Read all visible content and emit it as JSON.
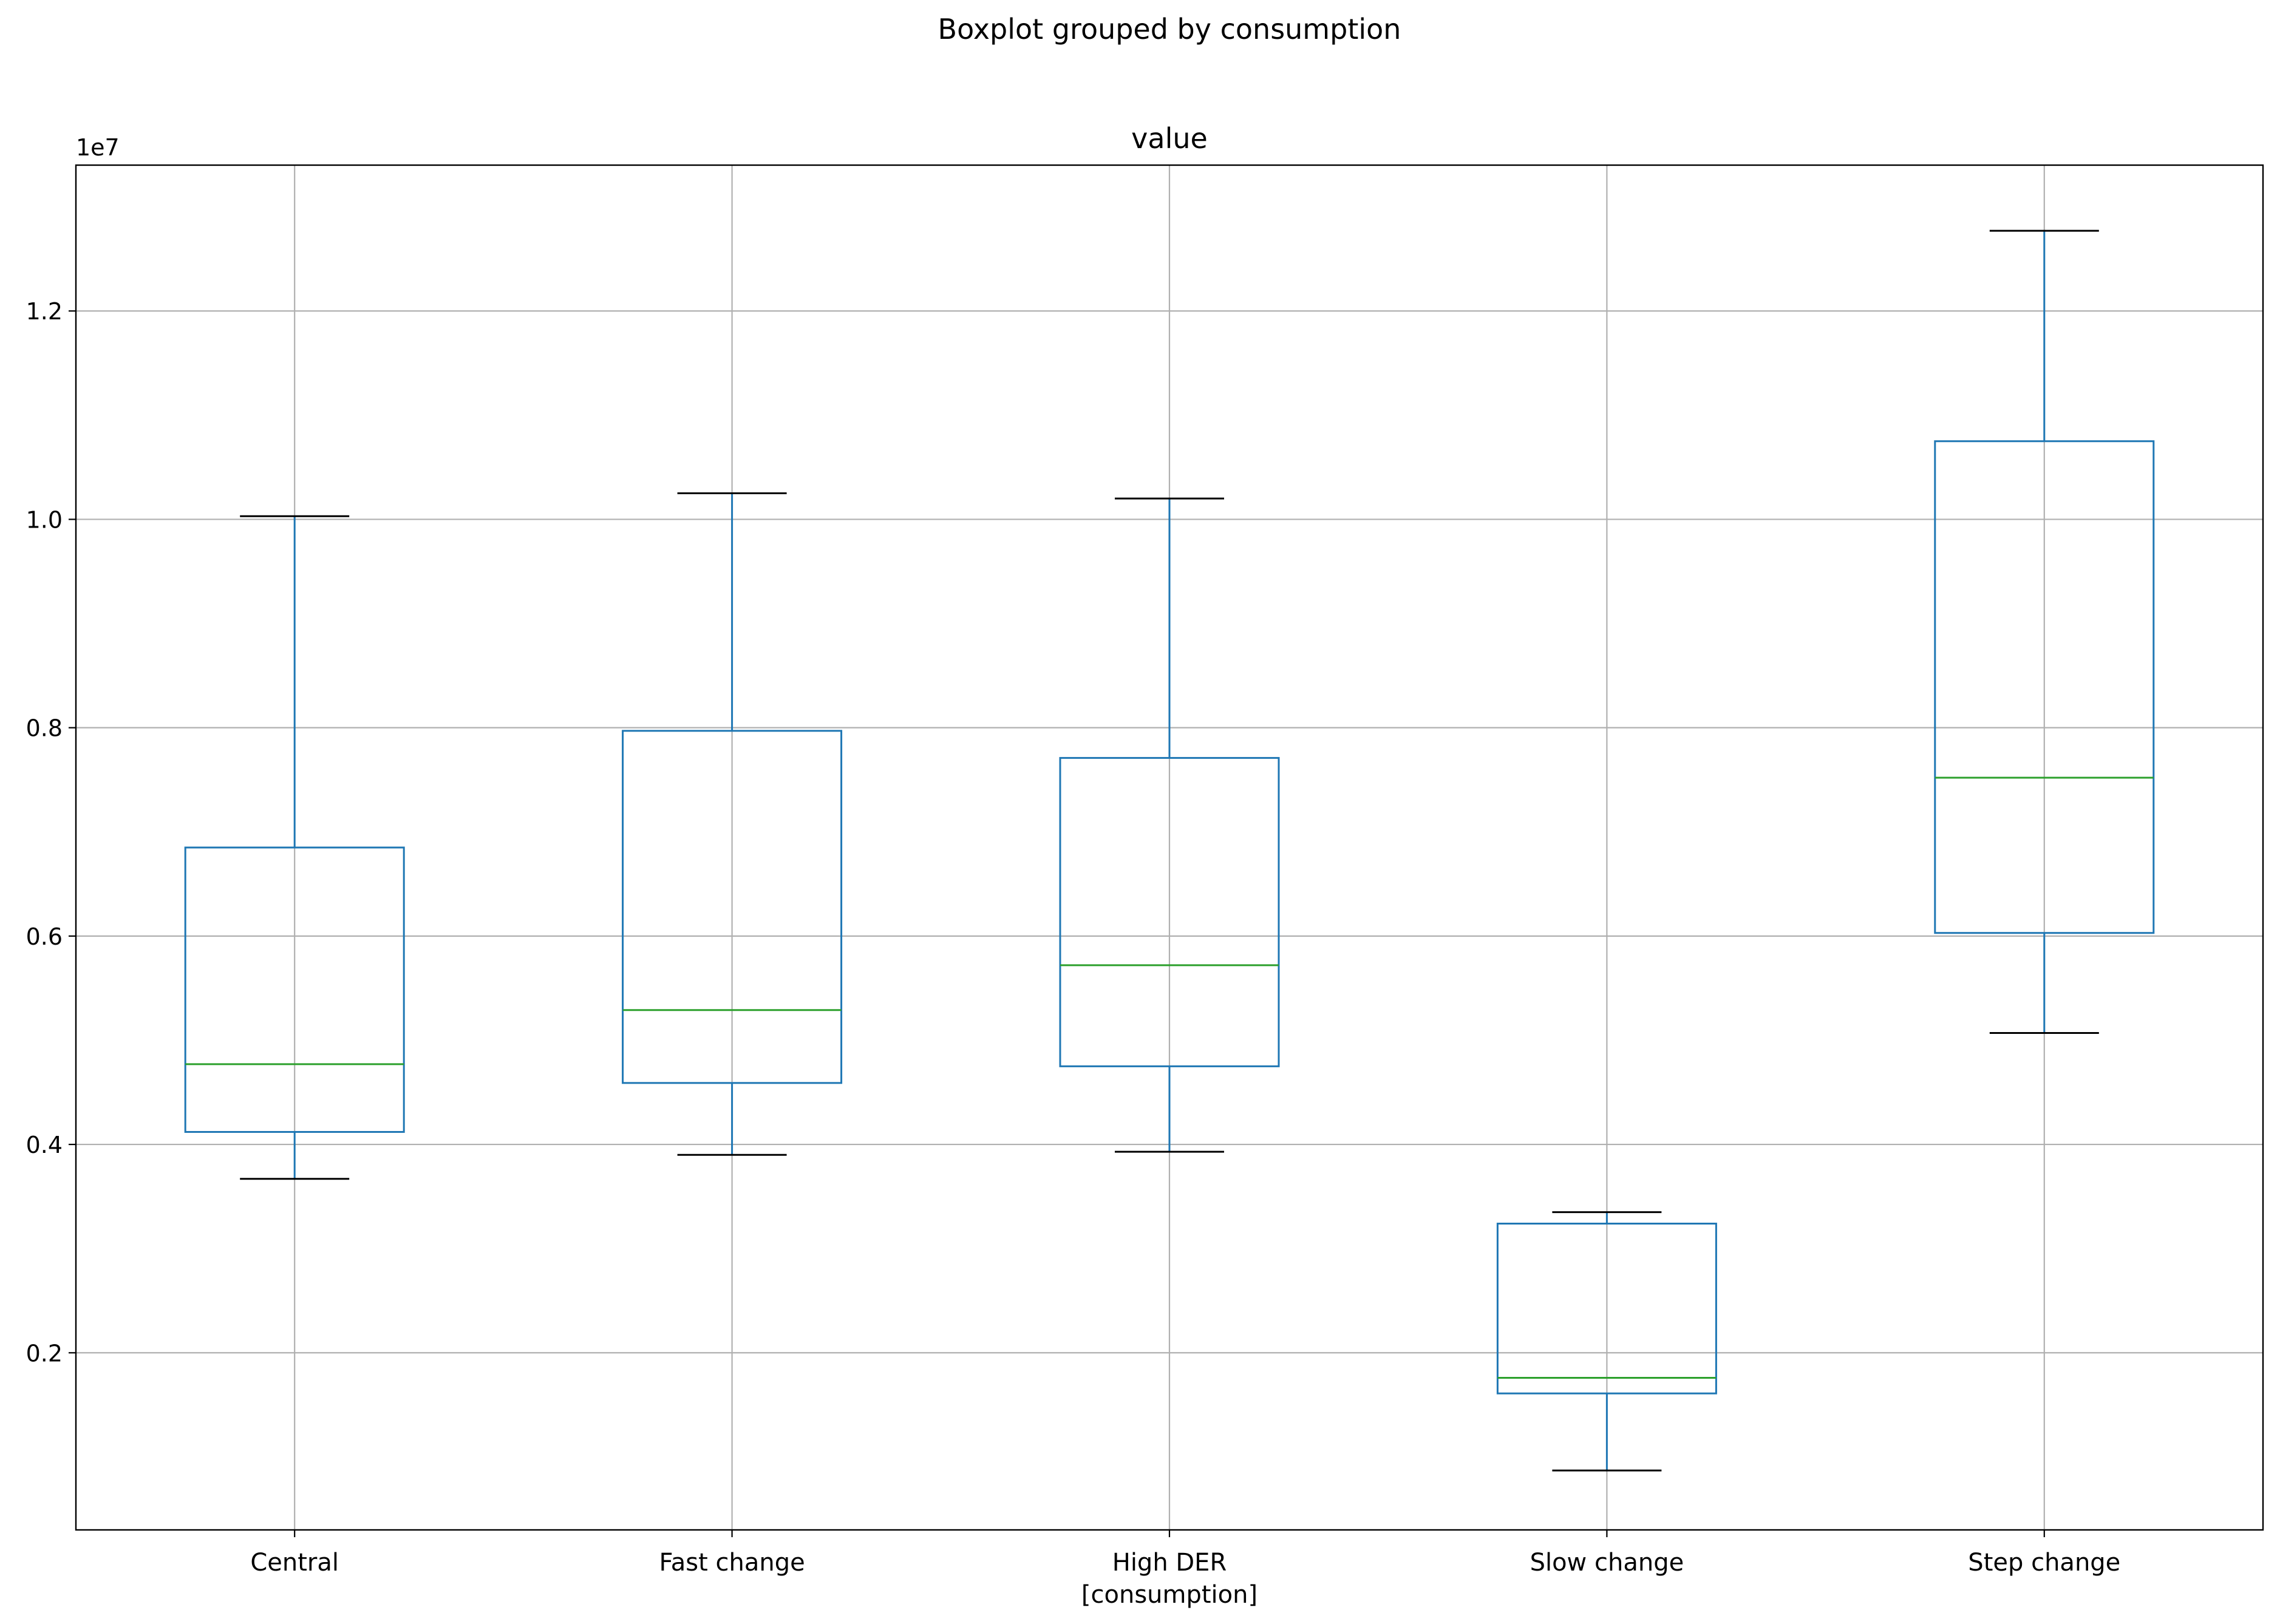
{
  "chart_data": {
    "type": "boxplot",
    "suptitle": "Boxplot grouped by consumption",
    "title": "value",
    "xlabel": "[consumption]",
    "ylabel": "",
    "y_offset_label": "1e7",
    "y_scale": 10000000,
    "ylim": [
      0.03,
      1.34
    ],
    "yticks": [
      0.2,
      0.4,
      0.6,
      0.8,
      1.0,
      1.2
    ],
    "ytick_labels": [
      "0.2",
      "0.4",
      "0.6",
      "0.8",
      "1.0",
      "1.2"
    ],
    "grid": true,
    "categories": [
      "Central",
      "Fast change",
      "High DER",
      "Slow change",
      "Step change"
    ],
    "boxes": [
      {
        "whisker_low": 0.367,
        "q1": 0.412,
        "median": 0.477,
        "q3": 0.685,
        "whisker_high": 1.003
      },
      {
        "whisker_low": 0.39,
        "q1": 0.459,
        "median": 0.529,
        "q3": 0.797,
        "whisker_high": 1.025
      },
      {
        "whisker_low": 0.393,
        "q1": 0.475,
        "median": 0.572,
        "q3": 0.771,
        "whisker_high": 1.02
      },
      {
        "whisker_low": 0.087,
        "q1": 0.161,
        "median": 0.176,
        "q3": 0.324,
        "whisker_high": 0.335
      },
      {
        "whisker_low": 0.507,
        "q1": 0.603,
        "median": 0.752,
        "q3": 1.075,
        "whisker_high": 1.277
      }
    ],
    "colors": {
      "box": "#1f77b4",
      "median": "#2ca02c",
      "cap": "#000000",
      "grid": "#b0b0b0"
    }
  }
}
